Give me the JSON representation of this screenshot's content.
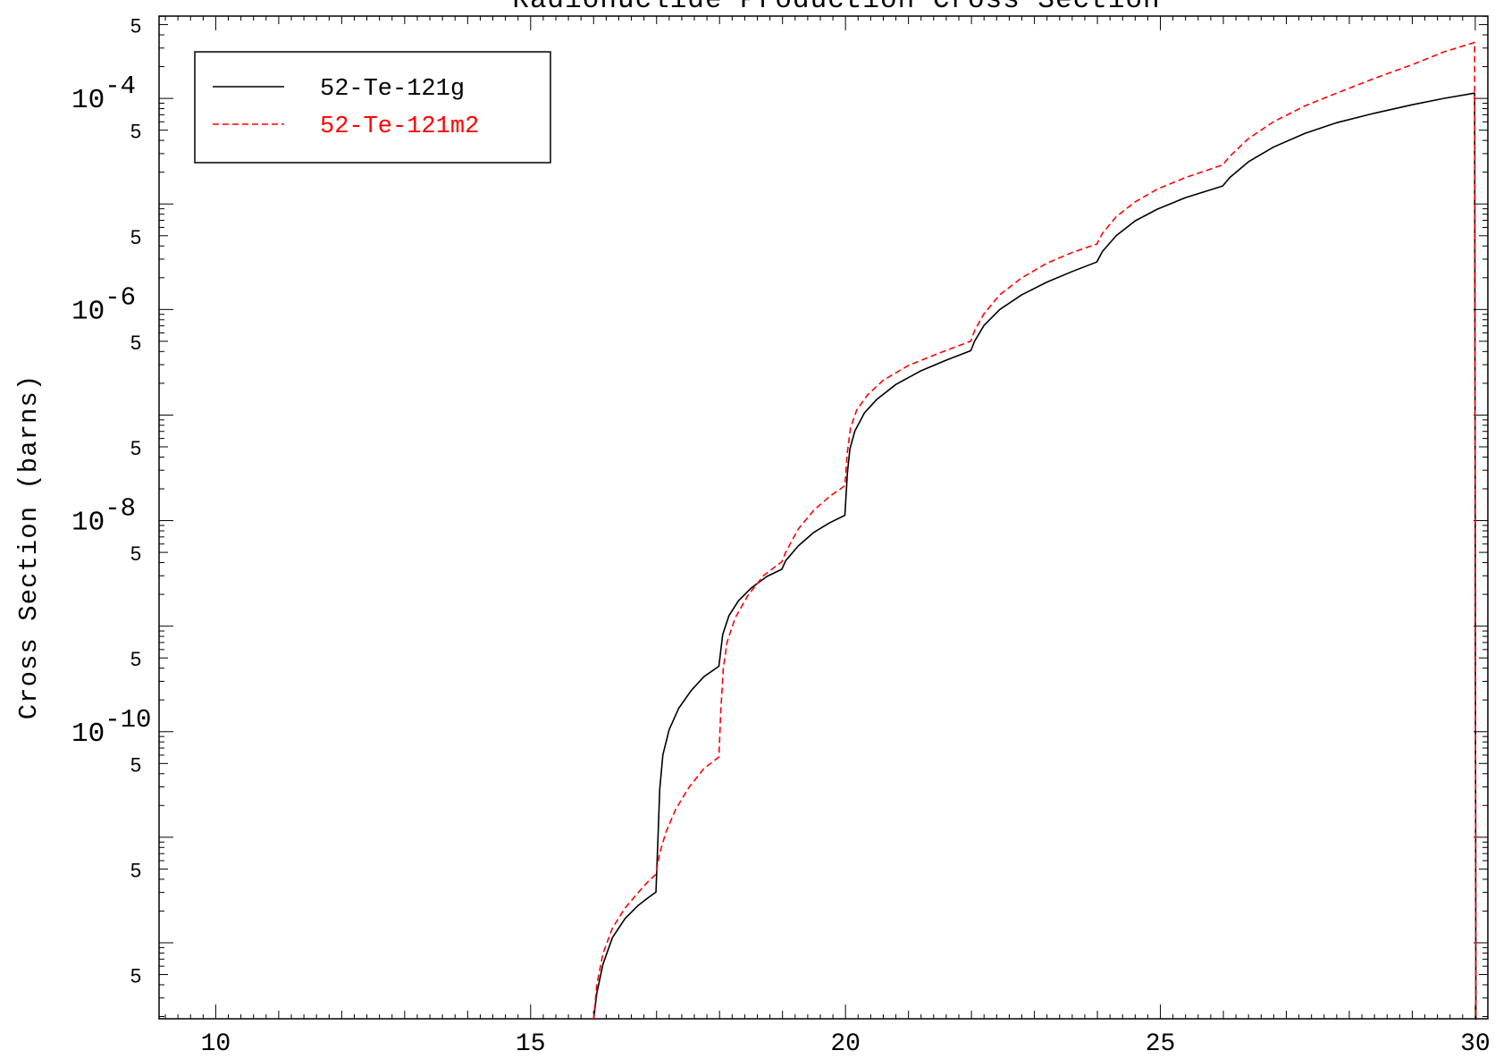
{
  "chart_data": {
    "type": "line",
    "title": "Radionuclide Production Cross Section",
    "xlabel": "",
    "ylabel": "Cross Section (barns)",
    "xlim": [
      9.1,
      30.2
    ],
    "ylim_exponent": [
      -12.72,
      -3.22
    ],
    "y_scale": "log",
    "grid": false,
    "legend_position": "top-left",
    "x_ticks": [
      10,
      15,
      20,
      25,
      30
    ],
    "x_tick_labels": [
      "10",
      "15",
      "20",
      "25",
      "30"
    ],
    "y_major_ticks": [
      {
        "exp": -4,
        "base": "10",
        "power": "-4"
      },
      {
        "exp": -6,
        "base": "10",
        "power": "-6"
      },
      {
        "exp": -8,
        "base": "10",
        "power": "-8"
      },
      {
        "exp": -10,
        "base": "10",
        "power": "-10"
      }
    ],
    "y_minor_label": "5",
    "series": [
      {
        "name": "52-Te-121g",
        "color": "#000000",
        "dash": "solid",
        "points": [
          [
            16.0,
            -12.73
          ],
          [
            16.05,
            -12.48
          ],
          [
            16.15,
            -12.2
          ],
          [
            16.3,
            -11.95
          ],
          [
            16.5,
            -11.77
          ],
          [
            16.7,
            -11.65
          ],
          [
            16.85,
            -11.58
          ],
          [
            16.99,
            -11.52
          ],
          [
            17.02,
            -11.05
          ],
          [
            17.05,
            -10.55
          ],
          [
            17.1,
            -10.22
          ],
          [
            17.2,
            -9.98
          ],
          [
            17.35,
            -9.78
          ],
          [
            17.55,
            -9.61
          ],
          [
            17.75,
            -9.48
          ],
          [
            17.99,
            -9.38
          ],
          [
            18.05,
            -9.08
          ],
          [
            18.15,
            -8.9
          ],
          [
            18.3,
            -8.76
          ],
          [
            18.5,
            -8.64
          ],
          [
            18.75,
            -8.53
          ],
          [
            18.99,
            -8.46
          ],
          [
            19.05,
            -8.38
          ],
          [
            19.25,
            -8.24
          ],
          [
            19.5,
            -8.11
          ],
          [
            19.75,
            -8.02
          ],
          [
            19.99,
            -7.95
          ],
          [
            20.03,
            -7.55
          ],
          [
            20.07,
            -7.32
          ],
          [
            20.15,
            -7.15
          ],
          [
            20.3,
            -6.98
          ],
          [
            20.5,
            -6.85
          ],
          [
            20.8,
            -6.71
          ],
          [
            21.2,
            -6.58
          ],
          [
            21.6,
            -6.48
          ],
          [
            21.99,
            -6.39
          ],
          [
            22.05,
            -6.3
          ],
          [
            22.2,
            -6.15
          ],
          [
            22.45,
            -6.0
          ],
          [
            22.8,
            -5.86
          ],
          [
            23.2,
            -5.74
          ],
          [
            23.6,
            -5.64
          ],
          [
            23.99,
            -5.55
          ],
          [
            24.08,
            -5.45
          ],
          [
            24.3,
            -5.3
          ],
          [
            24.6,
            -5.16
          ],
          [
            24.95,
            -5.05
          ],
          [
            25.4,
            -4.94
          ],
          [
            25.99,
            -4.83
          ],
          [
            26.1,
            -4.75
          ],
          [
            26.4,
            -4.6
          ],
          [
            26.8,
            -4.46
          ],
          [
            27.3,
            -4.33
          ],
          [
            27.8,
            -4.23
          ],
          [
            28.4,
            -4.14
          ],
          [
            29.0,
            -4.06
          ],
          [
            29.5,
            -4.0
          ],
          [
            29.99,
            -3.95
          ],
          [
            30.01,
            -12.73
          ]
        ]
      },
      {
        "name": "52-Te-121m2",
        "color": "#ff0000",
        "dash": "dashed",
        "points": [
          [
            16.0,
            -12.73
          ],
          [
            16.05,
            -12.4
          ],
          [
            16.15,
            -12.1
          ],
          [
            16.3,
            -11.86
          ],
          [
            16.5,
            -11.67
          ],
          [
            16.7,
            -11.53
          ],
          [
            16.85,
            -11.43
          ],
          [
            16.99,
            -11.35
          ],
          [
            17.05,
            -11.15
          ],
          [
            17.15,
            -10.95
          ],
          [
            17.3,
            -10.74
          ],
          [
            17.5,
            -10.54
          ],
          [
            17.75,
            -10.35
          ],
          [
            17.99,
            -10.24
          ],
          [
            18.02,
            -9.8
          ],
          [
            18.06,
            -9.4
          ],
          [
            18.12,
            -9.15
          ],
          [
            18.25,
            -8.92
          ],
          [
            18.45,
            -8.71
          ],
          [
            18.7,
            -8.52
          ],
          [
            18.99,
            -8.39
          ],
          [
            19.05,
            -8.3
          ],
          [
            19.25,
            -8.08
          ],
          [
            19.5,
            -7.9
          ],
          [
            19.75,
            -7.77
          ],
          [
            19.99,
            -7.67
          ],
          [
            20.03,
            -7.35
          ],
          [
            20.08,
            -7.12
          ],
          [
            20.18,
            -6.95
          ],
          [
            20.35,
            -6.81
          ],
          [
            20.6,
            -6.67
          ],
          [
            21.0,
            -6.53
          ],
          [
            21.5,
            -6.41
          ],
          [
            21.99,
            -6.3
          ],
          [
            22.05,
            -6.2
          ],
          [
            22.2,
            -6.04
          ],
          [
            22.45,
            -5.86
          ],
          [
            22.8,
            -5.7
          ],
          [
            23.2,
            -5.56
          ],
          [
            23.6,
            -5.46
          ],
          [
            23.99,
            -5.38
          ],
          [
            24.08,
            -5.28
          ],
          [
            24.3,
            -5.12
          ],
          [
            24.6,
            -4.98
          ],
          [
            24.95,
            -4.86
          ],
          [
            25.4,
            -4.75
          ],
          [
            25.99,
            -4.63
          ],
          [
            26.1,
            -4.55
          ],
          [
            26.4,
            -4.38
          ],
          [
            26.8,
            -4.22
          ],
          [
            27.3,
            -4.07
          ],
          [
            27.8,
            -3.95
          ],
          [
            28.4,
            -3.81
          ],
          [
            29.0,
            -3.68
          ],
          [
            29.5,
            -3.56
          ],
          [
            29.99,
            -3.47
          ],
          [
            30.01,
            -12.73
          ]
        ]
      }
    ]
  }
}
